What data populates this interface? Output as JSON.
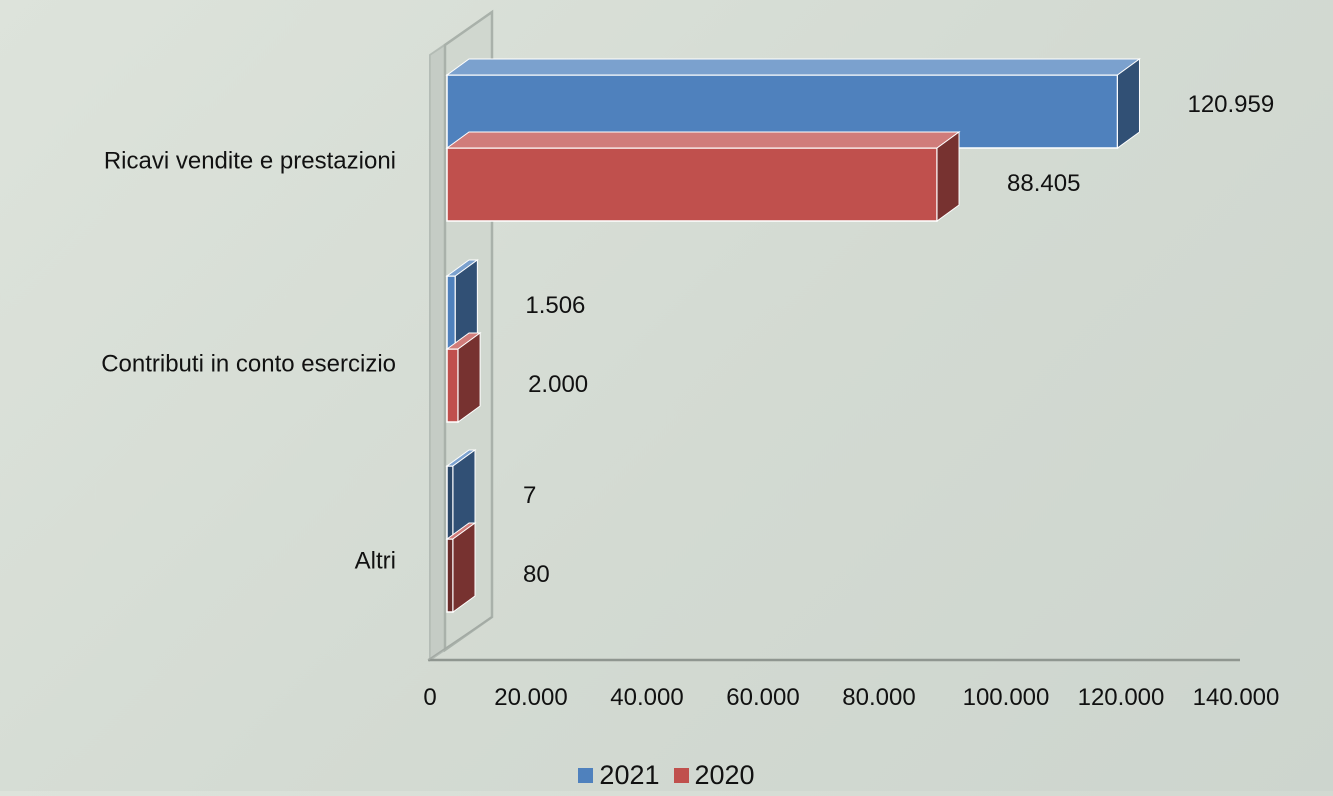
{
  "chart_data": {
    "type": "bar",
    "orientation": "horizontal",
    "style": "3d",
    "categories": [
      "Ricavi vendite e prestazioni",
      "Contributi in conto esercizio",
      "Altri"
    ],
    "series": [
      {
        "name": "2021",
        "color": "#4f81bd",
        "values": [
          120959,
          1506,
          7
        ],
        "data_labels": [
          "120.959",
          "1.506",
          "7"
        ]
      },
      {
        "name": "2020",
        "color": "#c0504d",
        "values": [
          88405,
          2000,
          80
        ],
        "data_labels": [
          "88.405",
          "2.000",
          "80"
        ]
      }
    ],
    "xlim": [
      0,
      140000
    ],
    "x_ticks": [
      0,
      20000,
      40000,
      60000,
      80000,
      100000,
      120000,
      140000
    ],
    "x_tick_labels": [
      "0",
      "20.000",
      "40.000",
      "60.000",
      "80.000",
      "100.000",
      "120.000",
      "140.000"
    ],
    "grid": false,
    "legend_position": "bottom",
    "title": "",
    "xlabel": "",
    "ylabel": ""
  }
}
